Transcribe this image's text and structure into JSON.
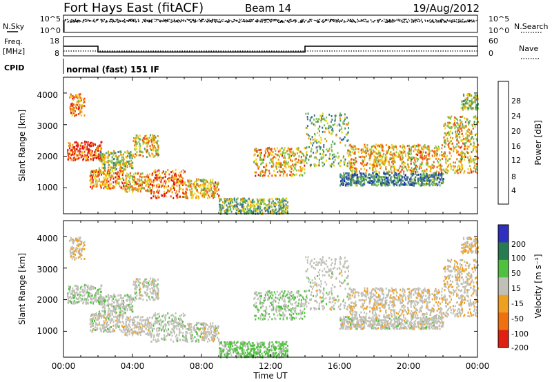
{
  "header": {
    "station": "Fort Hays East (fitACF)",
    "beam": "Beam 14",
    "date": "19/Aug/2012"
  },
  "noise_panel": {
    "left_label": "N.Sky",
    "right_label": "N.Search",
    "left_ticks": [
      "10^5",
      "10^0"
    ],
    "right_ticks": [
      "10^5",
      "10^0"
    ]
  },
  "freq_panel": {
    "left_label_1": "Freq.",
    "left_label_2": "[MHz]",
    "right_label": "Nave",
    "left_ticks": [
      "18",
      "8"
    ],
    "right_ticks": [
      "60",
      "0"
    ]
  },
  "cpid": {
    "label": "CPID",
    "text": "normal (fast) 151 IF"
  },
  "x_axis": {
    "label": "Time UT",
    "ticks": [
      "00:00",
      "04:00",
      "08:00",
      "12:00",
      "16:00",
      "20:00",
      "00:00"
    ]
  },
  "power_panel": {
    "ylabel": "Slant Range [km]",
    "yticks": [
      "1000",
      "2000",
      "3000",
      "4000"
    ],
    "colorbar_label": "Power [dB]",
    "colorbar_ticks": [
      "4",
      "8",
      "12",
      "16",
      "20",
      "24",
      "28"
    ]
  },
  "velocity_panel": {
    "ylabel": "Slant Range [km]",
    "yticks": [
      "1000",
      "2000",
      "3000",
      "4000"
    ],
    "colorbar_label": "Velocity [m s⁻¹]",
    "colorbar_ticks": [
      "200",
      "100",
      "50",
      "15",
      "-15",
      "-50",
      "-100",
      "-200"
    ]
  },
  "colors": {
    "power_scale": [
      "#0000e0",
      "#243c9c",
      "#3a6e9a",
      "#4a9a66",
      "#7cc24a",
      "#f0d010",
      "#f09010",
      "#f05010",
      "#e01010"
    ],
    "velocity_scale": [
      "#3030c0",
      "#287a50",
      "#50c040",
      "#c0c0b8",
      "#f0a020",
      "#f07010",
      "#e02010"
    ]
  },
  "chart_data": {
    "type": "heatmap",
    "time_range_hours": [
      0,
      24
    ],
    "range_km": [
      180,
      4500
    ],
    "power_db_range": [
      0,
      30
    ],
    "velocity_range": [
      -250,
      250
    ],
    "echo_regions": [
      {
        "t0": 0.3,
        "t1": 1.2,
        "r0": 3300,
        "r1": 4000,
        "power": 22,
        "vel": -20
      },
      {
        "t0": 0.2,
        "t1": 2.2,
        "r0": 1900,
        "r1": 2500,
        "power": 26,
        "vel": 10
      },
      {
        "t0": 2.0,
        "t1": 4.0,
        "r0": 1600,
        "r1": 2200,
        "power": 16,
        "vel": 5
      },
      {
        "t0": 4.0,
        "t1": 5.5,
        "r0": 2000,
        "r1": 2700,
        "power": 18,
        "vel": 0
      },
      {
        "t0": 1.5,
        "t1": 3.5,
        "r0": 1000,
        "r1": 1600,
        "power": 22,
        "vel": 0
      },
      {
        "t0": 3.5,
        "t1": 5.0,
        "r0": 900,
        "r1": 1500,
        "power": 20,
        "vel": -5
      },
      {
        "t0": 5.0,
        "t1": 7.0,
        "r0": 700,
        "r1": 1600,
        "power": 24,
        "vel": 5
      },
      {
        "t0": 7.0,
        "t1": 9.0,
        "r0": 700,
        "r1": 1300,
        "power": 20,
        "vel": 0
      },
      {
        "t0": 9.0,
        "t1": 13.0,
        "r0": 200,
        "r1": 700,
        "power": 14,
        "vel": 40
      },
      {
        "t0": 11.0,
        "t1": 14.0,
        "r0": 1400,
        "r1": 2300,
        "power": 20,
        "vel": 20
      },
      {
        "t0": 14.0,
        "t1": 16.5,
        "r0": 1700,
        "r1": 3400,
        "power": 14,
        "vel": 0
      },
      {
        "t0": 16.5,
        "t1": 24.0,
        "r0": 1500,
        "r1": 2400,
        "power": 20,
        "vel": -10
      },
      {
        "t0": 16.0,
        "t1": 22.0,
        "r0": 1100,
        "r1": 1500,
        "power": 10,
        "vel": 0
      },
      {
        "t0": 22.0,
        "t1": 24.0,
        "r0": 2400,
        "r1": 3300,
        "power": 18,
        "vel": -20
      },
      {
        "t0": 23.0,
        "t1": 24.0,
        "r0": 3500,
        "r1": 4000,
        "power": 16,
        "vel": -20
      }
    ],
    "frequency_mhz": [
      {
        "t0": 0,
        "t1": 2.0,
        "value": 13
      },
      {
        "t0": 2.0,
        "t1": 14.0,
        "value": 10
      },
      {
        "t0": 14.0,
        "t1": 24,
        "value": 13
      }
    ],
    "nave": 15,
    "noise_sky_level": 0.7
  }
}
